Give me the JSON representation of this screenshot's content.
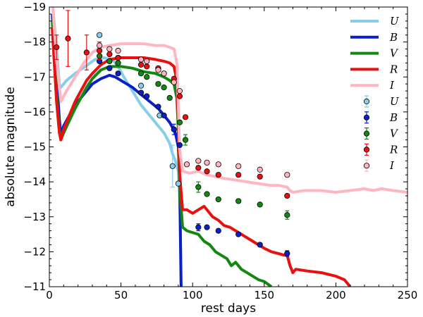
{
  "chart_data": {
    "type": "line",
    "xlabel": "rest days",
    "ylabel": "absolute magnitude",
    "xlim": [
      0,
      250
    ],
    "ylim": [
      -19,
      -11
    ],
    "y_inverted": true,
    "grid": false,
    "legend_placement": "top-right",
    "x_ticks": [
      "0",
      "50",
      "100",
      "150",
      "200",
      "250"
    ],
    "y_ticks": [
      "−19",
      "−18",
      "−17",
      "−16",
      "−15",
      "−14",
      "−13",
      "−12",
      "−11"
    ],
    "x_tick_values": [
      0,
      50,
      100,
      150,
      200,
      250
    ],
    "y_tick_values": [
      -19,
      -18,
      -17,
      -16,
      -15,
      -14,
      -13,
      -12,
      -11
    ],
    "model_series": [
      {
        "name": "U",
        "color": "#87ceeb",
        "points": [
          [
            2,
            -19.2
          ],
          [
            5,
            -17.8
          ],
          [
            7,
            -16.8
          ],
          [
            8,
            -16.7
          ],
          [
            12,
            -16.9
          ],
          [
            18,
            -17.1
          ],
          [
            25,
            -17.3
          ],
          [
            32,
            -17.5
          ],
          [
            38,
            -17.55
          ],
          [
            44,
            -17.5
          ],
          [
            48,
            -17.3
          ],
          [
            52,
            -17.0
          ],
          [
            58,
            -16.6
          ],
          [
            64,
            -16.2
          ],
          [
            70,
            -15.9
          ],
          [
            76,
            -15.6
          ],
          [
            80,
            -15.4
          ],
          [
            84,
            -15.1
          ],
          [
            86,
            -14.8
          ],
          [
            88,
            -14.6
          ],
          [
            90,
            -14.3
          ],
          [
            91,
            -13.5
          ],
          [
            92,
            -11.0
          ]
        ]
      },
      {
        "name": "B",
        "color": "#0a1fc8",
        "points": [
          [
            2,
            -18.8
          ],
          [
            5,
            -17.0
          ],
          [
            7,
            -15.8
          ],
          [
            8,
            -15.35
          ],
          [
            10,
            -15.6
          ],
          [
            14,
            -15.9
          ],
          [
            18,
            -16.2
          ],
          [
            22,
            -16.4
          ],
          [
            26,
            -16.6
          ],
          [
            30,
            -16.8
          ],
          [
            36,
            -16.95
          ],
          [
            42,
            -17.05
          ],
          [
            46,
            -17.0
          ],
          [
            52,
            -16.85
          ],
          [
            58,
            -16.7
          ],
          [
            64,
            -16.5
          ],
          [
            70,
            -16.3
          ],
          [
            76,
            -16.1
          ],
          [
            80,
            -15.9
          ],
          [
            84,
            -15.7
          ],
          [
            88,
            -15.4
          ],
          [
            90,
            -15.0
          ],
          [
            91,
            -14.0
          ],
          [
            92,
            -11.0
          ]
        ]
      },
      {
        "name": "V",
        "color": "#118811",
        "points": [
          [
            2,
            -18.6
          ],
          [
            5,
            -16.5
          ],
          [
            7,
            -15.5
          ],
          [
            8,
            -15.2
          ],
          [
            10,
            -15.4
          ],
          [
            14,
            -15.75
          ],
          [
            18,
            -16.1
          ],
          [
            22,
            -16.4
          ],
          [
            26,
            -16.7
          ],
          [
            30,
            -16.95
          ],
          [
            36,
            -17.2
          ],
          [
            42,
            -17.3
          ],
          [
            50,
            -17.3
          ],
          [
            58,
            -17.25
          ],
          [
            66,
            -17.15
          ],
          [
            74,
            -17.1
          ],
          [
            80,
            -17.0
          ],
          [
            84,
            -16.9
          ],
          [
            87,
            -16.8
          ],
          [
            89,
            -16.4
          ],
          [
            90,
            -15.5
          ],
          [
            91,
            -13.8
          ],
          [
            93,
            -12.7
          ],
          [
            96,
            -12.6
          ],
          [
            100,
            -12.55
          ],
          [
            104,
            -12.5
          ],
          [
            108,
            -12.3
          ],
          [
            112,
            -12.2
          ],
          [
            116,
            -12.0
          ],
          [
            120,
            -11.9
          ],
          [
            124,
            -11.8
          ],
          [
            127,
            -11.6
          ],
          [
            130,
            -11.7
          ],
          [
            134,
            -11.5
          ],
          [
            138,
            -11.4
          ],
          [
            142,
            -11.3
          ],
          [
            146,
            -11.2
          ],
          [
            150,
            -11.15
          ],
          [
            155,
            -11.0
          ]
        ]
      },
      {
        "name": "R",
        "color": "#e81010",
        "points": [
          [
            2,
            -18.4
          ],
          [
            5,
            -16.3
          ],
          [
            7,
            -15.4
          ],
          [
            8,
            -15.2
          ],
          [
            10,
            -15.5
          ],
          [
            14,
            -15.9
          ],
          [
            18,
            -16.3
          ],
          [
            22,
            -16.6
          ],
          [
            26,
            -16.9
          ],
          [
            30,
            -17.1
          ],
          [
            36,
            -17.35
          ],
          [
            42,
            -17.5
          ],
          [
            50,
            -17.55
          ],
          [
            58,
            -17.55
          ],
          [
            66,
            -17.55
          ],
          [
            74,
            -17.5
          ],
          [
            80,
            -17.45
          ],
          [
            84,
            -17.4
          ],
          [
            87,
            -17.3
          ],
          [
            89,
            -16.9
          ],
          [
            90,
            -15.8
          ],
          [
            91,
            -14.2
          ],
          [
            93,
            -13.2
          ],
          [
            96,
            -13.2
          ],
          [
            100,
            -13.1
          ],
          [
            104,
            -13.2
          ],
          [
            108,
            -13.3
          ],
          [
            111,
            -13.15
          ],
          [
            114,
            -13.0
          ],
          [
            118,
            -12.9
          ],
          [
            122,
            -12.75
          ],
          [
            126,
            -12.7
          ],
          [
            130,
            -12.6
          ],
          [
            134,
            -12.5
          ],
          [
            138,
            -12.4
          ],
          [
            142,
            -12.3
          ],
          [
            146,
            -12.2
          ],
          [
            150,
            -12.1
          ],
          [
            155,
            -12.0
          ],
          [
            160,
            -11.95
          ],
          [
            164,
            -11.9
          ],
          [
            166,
            -11.9
          ],
          [
            168,
            -11.6
          ],
          [
            170,
            -11.4
          ],
          [
            172,
            -11.5
          ],
          [
            180,
            -11.45
          ],
          [
            190,
            -11.4
          ],
          [
            200,
            -11.3
          ],
          [
            206,
            -11.2
          ],
          [
            210,
            -11.0
          ]
        ]
      },
      {
        "name": "I",
        "color": "#ffb6c1",
        "points": [
          [
            2,
            -19.2
          ],
          [
            5,
            -17.5
          ],
          [
            7,
            -16.7
          ],
          [
            8,
            -16.3
          ],
          [
            12,
            -16.6
          ],
          [
            18,
            -17.0
          ],
          [
            24,
            -17.4
          ],
          [
            30,
            -17.7
          ],
          [
            36,
            -17.85
          ],
          [
            42,
            -17.9
          ],
          [
            50,
            -17.95
          ],
          [
            58,
            -17.95
          ],
          [
            66,
            -17.95
          ],
          [
            74,
            -17.9
          ],
          [
            80,
            -17.9
          ],
          [
            84,
            -17.85
          ],
          [
            87,
            -17.8
          ],
          [
            89,
            -17.4
          ],
          [
            90,
            -16.2
          ],
          [
            91,
            -14.9
          ],
          [
            93,
            -14.3
          ],
          [
            98,
            -14.25
          ],
          [
            104,
            -14.3
          ],
          [
            110,
            -14.2
          ],
          [
            116,
            -14.15
          ],
          [
            122,
            -14.1
          ],
          [
            130,
            -14.05
          ],
          [
            138,
            -14.0
          ],
          [
            146,
            -13.95
          ],
          [
            154,
            -13.9
          ],
          [
            160,
            -13.9
          ],
          [
            166,
            -13.85
          ],
          [
            168,
            -13.75
          ],
          [
            170,
            -13.7
          ],
          [
            178,
            -13.75
          ],
          [
            190,
            -13.75
          ],
          [
            200,
            -13.7
          ],
          [
            210,
            -13.75
          ],
          [
            220,
            -13.8
          ],
          [
            226,
            -13.75
          ],
          [
            232,
            -13.8
          ],
          [
            240,
            -13.75
          ],
          [
            250,
            -13.7
          ]
        ]
      }
    ],
    "observed_series": [
      {
        "name": "U",
        "color": "#87ceeb",
        "points": [
          [
            35,
            -18.2,
            0
          ],
          [
            64,
            -16.75,
            0
          ],
          [
            77,
            -15.9,
            0
          ],
          [
            86,
            -14.45,
            0.6
          ],
          [
            90,
            -13.95,
            0
          ]
        ]
      },
      {
        "name": "B",
        "color": "#0a1fc8",
        "points": [
          [
            35,
            -17.45,
            0
          ],
          [
            42,
            -17.25,
            0
          ],
          [
            48,
            -17.1,
            0
          ],
          [
            64,
            -16.55,
            0
          ],
          [
            68,
            -16.45,
            0
          ],
          [
            76,
            -16.15,
            0
          ],
          [
            80,
            -15.9,
            0
          ],
          [
            87,
            -15.5,
            0.15
          ],
          [
            91,
            -15.05,
            0
          ],
          [
            104,
            -12.7,
            0.1
          ],
          [
            110,
            -12.7,
            0
          ],
          [
            118,
            -12.6,
            0
          ],
          [
            132,
            -12.5,
            0
          ],
          [
            147,
            -12.2,
            0
          ],
          [
            166,
            -11.95,
            0.08
          ]
        ]
      },
      {
        "name": "V",
        "color": "#118811",
        "points": [
          [
            35,
            -17.6,
            0
          ],
          [
            42,
            -17.45,
            0
          ],
          [
            48,
            -17.4,
            0
          ],
          [
            64,
            -17.1,
            0
          ],
          [
            68,
            -17.0,
            0
          ],
          [
            76,
            -16.8,
            0
          ],
          [
            80,
            -16.7,
            0
          ],
          [
            84,
            -16.4,
            0
          ],
          [
            91,
            -15.7,
            0
          ],
          [
            95,
            -15.2,
            0.15
          ],
          [
            104,
            -13.85,
            0.15
          ],
          [
            110,
            -13.65,
            0
          ],
          [
            118,
            -13.5,
            0
          ],
          [
            132,
            -13.45,
            0
          ],
          [
            147,
            -13.35,
            0
          ],
          [
            166,
            -13.05,
            0.12
          ]
        ]
      },
      {
        "name": "R",
        "color": "#e81010",
        "points": [
          [
            5,
            -17.85,
            0.35
          ],
          [
            13,
            -18.1,
            0.8
          ],
          [
            26,
            -17.7,
            0.5
          ],
          [
            35,
            -17.75,
            0.25
          ],
          [
            42,
            -17.65,
            0
          ],
          [
            48,
            -17.55,
            0
          ],
          [
            64,
            -17.35,
            0
          ],
          [
            68,
            -17.3,
            0
          ],
          [
            76,
            -17.25,
            0
          ],
          [
            80,
            -17.1,
            0
          ],
          [
            87,
            -16.95,
            0
          ],
          [
            91,
            -16.45,
            0
          ],
          [
            95,
            -15.85,
            0
          ],
          [
            104,
            -14.4,
            0
          ],
          [
            110,
            -14.3,
            0
          ],
          [
            118,
            -14.2,
            0
          ],
          [
            132,
            -14.2,
            0
          ],
          [
            147,
            -14.15,
            0
          ],
          [
            166,
            -13.6,
            0
          ]
        ]
      },
      {
        "name": "I",
        "color": "#ffb6c1",
        "points": [
          [
            35,
            -17.9,
            0
          ],
          [
            42,
            -17.8,
            0
          ],
          [
            48,
            -17.75,
            0
          ],
          [
            64,
            -17.5,
            0
          ],
          [
            68,
            -17.45,
            0
          ],
          [
            76,
            -17.2,
            0
          ],
          [
            80,
            -17.1,
            0
          ],
          [
            87,
            -16.85,
            0
          ],
          [
            91,
            -16.6,
            0
          ],
          [
            96,
            -14.5,
            0
          ],
          [
            104,
            -14.6,
            0
          ],
          [
            110,
            -14.55,
            0
          ],
          [
            118,
            -14.5,
            0
          ],
          [
            132,
            -14.45,
            0
          ],
          [
            147,
            -14.35,
            0
          ],
          [
            166,
            -14.2,
            0
          ]
        ]
      }
    ],
    "legend": [
      {
        "name": "U",
        "color": "#87ceeb",
        "kind": "line"
      },
      {
        "name": "B",
        "color": "#0a1fc8",
        "kind": "line"
      },
      {
        "name": "V",
        "color": "#118811",
        "kind": "line"
      },
      {
        "name": "R",
        "color": "#e81010",
        "kind": "line"
      },
      {
        "name": "I",
        "color": "#ffb6c1",
        "kind": "line"
      },
      {
        "name": "U",
        "color": "#87ceeb",
        "kind": "marker"
      },
      {
        "name": "B",
        "color": "#0a1fc8",
        "kind": "marker"
      },
      {
        "name": "V",
        "color": "#118811",
        "kind": "marker"
      },
      {
        "name": "R",
        "color": "#e81010",
        "kind": "marker"
      },
      {
        "name": "I",
        "color": "#ffb6c1",
        "kind": "marker"
      }
    ]
  }
}
